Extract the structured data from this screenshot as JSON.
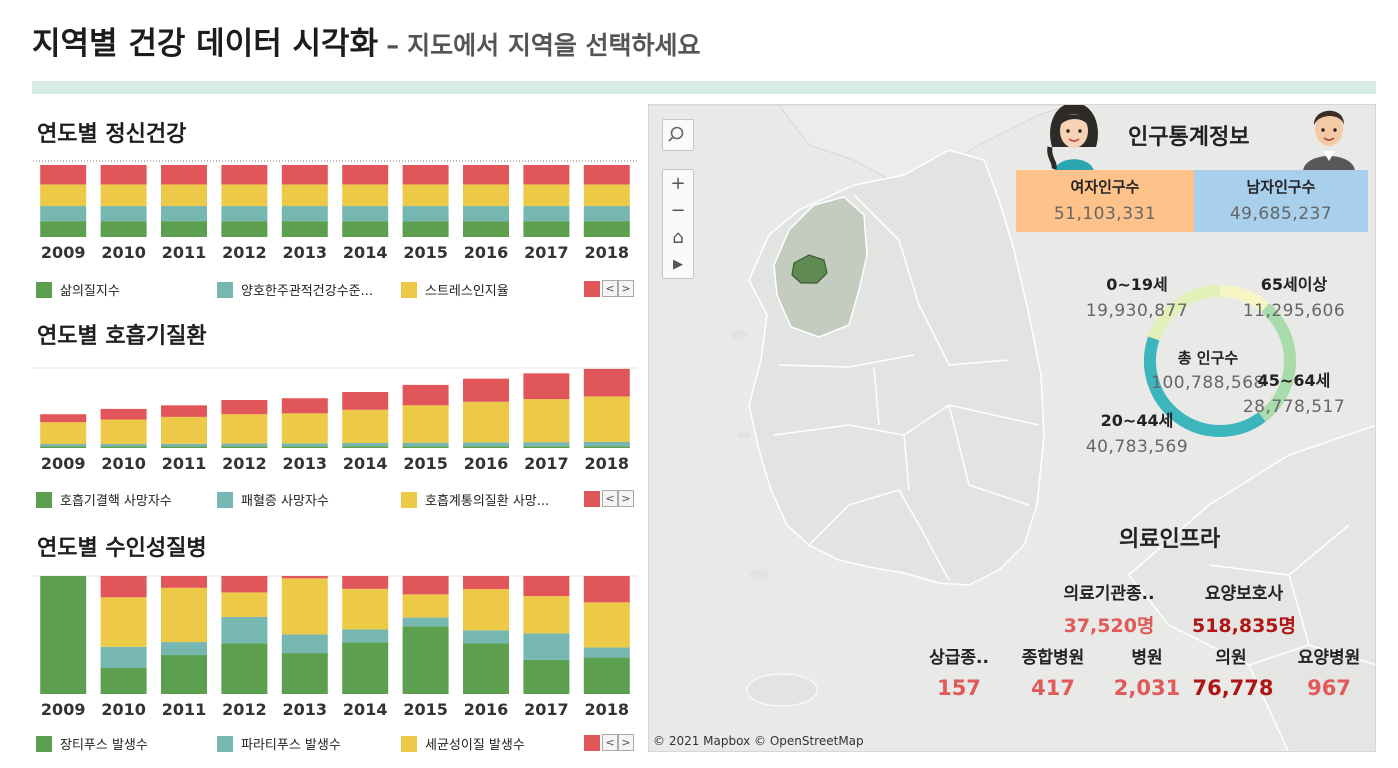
{
  "header": {
    "title": "지역별 건강 데이터 시각화",
    "dash": "–",
    "subtitle": "지도에서 지역을 선택하세요"
  },
  "colors": {
    "green": "#5b9f4f",
    "teal": "#76b7b2",
    "yellow": "#edc948",
    "red": "#e15759",
    "header_bar": "#d9ebe7",
    "female_box": "#ffc28a",
    "male_box": "#a8cfec",
    "infra_light_red": "#e05a5a",
    "infra_dark_red": "#b01515"
  },
  "mental_panel": {
    "title": "연도별 정신건강",
    "legend": [
      {
        "label": "삶의질지수",
        "color": "#5b9f4f"
      },
      {
        "label": "양호한주관적건강수준...",
        "color": "#76b7b2"
      },
      {
        "label": "스트레스인지율",
        "color": "#edc948"
      }
    ]
  },
  "resp_panel": {
    "title": "연도별 호흡기질환",
    "legend": [
      {
        "label": "호흡기결핵 사망자수",
        "color": "#5b9f4f"
      },
      {
        "label": "패혈증 사망자수",
        "color": "#76b7b2"
      },
      {
        "label": "호흡계통의질환 사망...",
        "color": "#edc948"
      }
    ]
  },
  "water_panel": {
    "title": "연도별 수인성질병",
    "legend": [
      {
        "label": "장티푸스 발생수",
        "color": "#5b9f4f"
      },
      {
        "label": "파라티푸스 발생수",
        "color": "#76b7b2"
      },
      {
        "label": "세균성이질 발생수",
        "color": "#edc948"
      }
    ]
  },
  "chart_data": [
    {
      "type": "bar",
      "stacked": "100%",
      "title": "연도별 정신건강",
      "categories": [
        "2009",
        "2010",
        "2011",
        "2012",
        "2013",
        "2014",
        "2015",
        "2016",
        "2017",
        "2018"
      ],
      "series": [
        {
          "name": "삶의질지수",
          "color": "#5b9f4f",
          "values": [
            22,
            22,
            22,
            22,
            22,
            22,
            22,
            22,
            22,
            22
          ]
        },
        {
          "name": "양호한주관적건강수준...",
          "color": "#76b7b2",
          "values": [
            21,
            21,
            21,
            21,
            21,
            21,
            21,
            21,
            21,
            21
          ]
        },
        {
          "name": "스트레스인지율",
          "color": "#edc948",
          "values": [
            30,
            30,
            30,
            30,
            30,
            30,
            30,
            30,
            30,
            30
          ]
        },
        {
          "color": "#e15759",
          "values": [
            27,
            27,
            27,
            27,
            27,
            27,
            27,
            27,
            27,
            27
          ]
        }
      ]
    },
    {
      "type": "bar",
      "stacked": true,
      "title": "연도별 호흡기질환",
      "categories": [
        "2009",
        "2010",
        "2011",
        "2012",
        "2013",
        "2014",
        "2015",
        "2016",
        "2017",
        "2018"
      ],
      "series": [
        {
          "name": "호흡기결핵 사망자수",
          "color": "#5b9f4f",
          "values": [
            2,
            2,
            2,
            2,
            2,
            2,
            2,
            2,
            2,
            2
          ]
        },
        {
          "name": "패혈증 사망자수",
          "color": "#76b7b2",
          "values": [
            2.5,
            2.6,
            2.7,
            3.0,
            3.2,
            3.6,
            4.0,
            4.3,
            4.6,
            5.0
          ]
        },
        {
          "name": "호흡계통의질환 사망...",
          "color": "#edc948",
          "values": [
            24.5,
            27.4,
            30.3,
            33.0,
            33.8,
            37.4,
            42.0,
            45.7,
            48.4,
            51.0
          ]
        },
        {
          "color": "#e15759",
          "values": [
            9,
            12,
            13,
            16,
            17,
            20,
            23,
            26,
            29,
            31
          ]
        }
      ],
      "ylim": [
        0,
        90
      ]
    },
    {
      "type": "bar",
      "stacked": "100%",
      "title": "연도별 수인성질병",
      "categories": [
        "2009",
        "2010",
        "2011",
        "2012",
        "2013",
        "2014",
        "2015",
        "2016",
        "2017",
        "2018"
      ],
      "series": [
        {
          "name": "장티푸스 발생수",
          "color": "#5b9f4f",
          "values": [
            100,
            22,
            33,
            31,
            35,
            28,
            70,
            27,
            22,
            29
          ]
        },
        {
          "name": "파라티푸스 발생수",
          "color": "#76b7b2",
          "values": [
            0,
            18,
            11,
            16,
            16,
            7,
            9,
            7,
            17,
            8
          ]
        },
        {
          "name": "세균성이질 발생수",
          "color": "#edc948",
          "values": [
            0,
            42,
            46,
            15,
            48,
            22,
            24,
            22,
            24,
            36
          ]
        },
        {
          "color": "#e15759",
          "values": [
            0,
            18,
            10,
            10,
            2,
            7,
            19,
            7,
            13,
            21
          ]
        }
      ],
      "ylim": [
        0,
        100
      ]
    }
  ],
  "map": {
    "copyright": "© 2021 Mapbox  © OpenStreetMap",
    "buttons": {
      "zoom_in": "+",
      "zoom_out": "−",
      "home": "⌂",
      "play": "▶"
    }
  },
  "population": {
    "title": "인구통계정보",
    "female_label": "여자인구수",
    "female_value": "51,103,331",
    "male_label": "남자인구수",
    "male_value": "49,685,237",
    "total_label": "총 인구수",
    "total_value": "100,788,568",
    "age_groups": [
      {
        "label": "0~19세",
        "value": "19,930,877",
        "color": "#e3f1b8"
      },
      {
        "label": "65세이상",
        "value": "11,295,606",
        "color": "#f7f5c6"
      },
      {
        "label": "45~64세",
        "value": "28,778,517",
        "color": "#a9dcab"
      },
      {
        "label": "20~44세",
        "value": "40,783,569",
        "color": "#3db5bd"
      }
    ]
  },
  "infra": {
    "title": "의료인프라",
    "top": [
      {
        "label": "의료기관종..",
        "value": "37,520명",
        "color": "#e05a5a"
      },
      {
        "label": "요양보호사",
        "value": "518,835명",
        "color": "#b01515"
      }
    ],
    "bottom": [
      {
        "label": "상급종..",
        "value": "157",
        "color": "#e05a5a"
      },
      {
        "label": "종합병원",
        "value": "417",
        "color": "#e05a5a"
      },
      {
        "label": "병원",
        "value": "2,031",
        "color": "#e05a5a"
      },
      {
        "label": "의원",
        "value": "76,778",
        "color": "#b01515"
      },
      {
        "label": "요양병원",
        "value": "967",
        "color": "#e05a5a"
      }
    ]
  }
}
